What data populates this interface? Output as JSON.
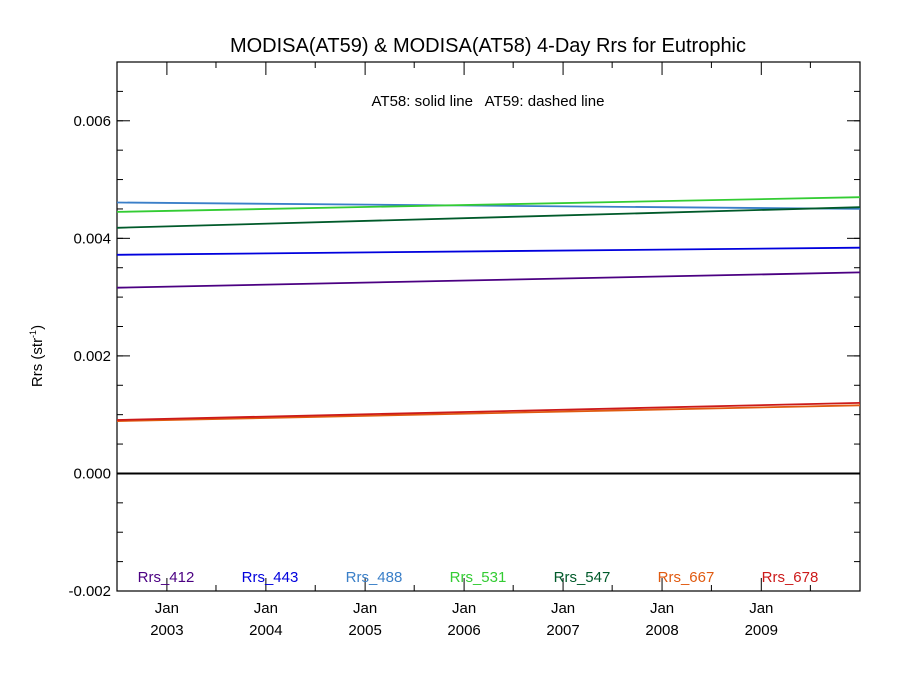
{
  "chart_data": {
    "type": "line",
    "title": "MODISA(AT59) & MODISA(AT58) 4-Day Rrs for Eutrophic",
    "ylabel_main": "Rrs (str",
    "ylabel_sup": "-1",
    "ylabel_close": ")",
    "annotation": "AT58: solid line   AT59: dashed line",
    "xlim": [
      "2002-07-01",
      "2009-12-31"
    ],
    "ylim": [
      -0.002,
      0.007
    ],
    "y_major_ticks": [
      -0.002,
      0.0,
      0.002,
      0.004,
      0.006
    ],
    "y_tick_labels": [
      "-0.002",
      "0.000",
      "0.002",
      "0.004",
      "0.006"
    ],
    "y_minor_step": 0.0005,
    "x_ticks": [
      {
        "date": "2003-01-01",
        "month": "Jan",
        "year": "2003"
      },
      {
        "date": "2004-01-01",
        "month": "Jan",
        "year": "2004"
      },
      {
        "date": "2005-01-01",
        "month": "Jan",
        "year": "2005"
      },
      {
        "date": "2006-01-01",
        "month": "Jan",
        "year": "2006"
      },
      {
        "date": "2007-01-01",
        "month": "Jan",
        "year": "2007"
      },
      {
        "date": "2008-01-01",
        "month": "Jan",
        "year": "2008"
      },
      {
        "date": "2009-01-01",
        "month": "Jan",
        "year": "2009"
      }
    ],
    "x_minor_ticks": [
      "2003-07-01",
      "2004-07-01",
      "2005-07-01",
      "2006-07-01",
      "2007-07-01",
      "2008-07-01",
      "2009-07-01"
    ],
    "zero_line": 0.0,
    "grid": false,
    "legend_position": "bottom",
    "series": [
      {
        "name": "Rrs_412",
        "color": "#4b0082",
        "x": [
          "2002-07-01",
          "2009-12-31"
        ],
        "y": [
          0.00316,
          0.00342
        ]
      },
      {
        "name": "Rrs_443",
        "color": "#0000dd",
        "x": [
          "2002-07-01",
          "2009-12-31"
        ],
        "y": [
          0.00372,
          0.00384
        ]
      },
      {
        "name": "Rrs_488",
        "color": "#3a7fc8",
        "x": [
          "2002-07-01",
          "2009-12-31"
        ],
        "y": [
          0.00461,
          0.0045
        ]
      },
      {
        "name": "Rrs_531",
        "color": "#33cc33",
        "x": [
          "2002-07-01",
          "2009-12-31"
        ],
        "y": [
          0.00445,
          0.0047
        ]
      },
      {
        "name": "Rrs_547",
        "color": "#005a2a",
        "x": [
          "2002-07-01",
          "2009-12-31"
        ],
        "y": [
          0.00418,
          0.00453
        ]
      },
      {
        "name": "Rrs_667",
        "color": "#e05a10",
        "x": [
          "2002-07-01",
          "2009-12-31"
        ],
        "y": [
          0.00089,
          0.00116
        ]
      },
      {
        "name": "Rrs_678",
        "color": "#cc1a1a",
        "x": [
          "2002-07-01",
          "2009-12-31"
        ],
        "y": [
          0.00091,
          0.0012
        ]
      }
    ]
  }
}
